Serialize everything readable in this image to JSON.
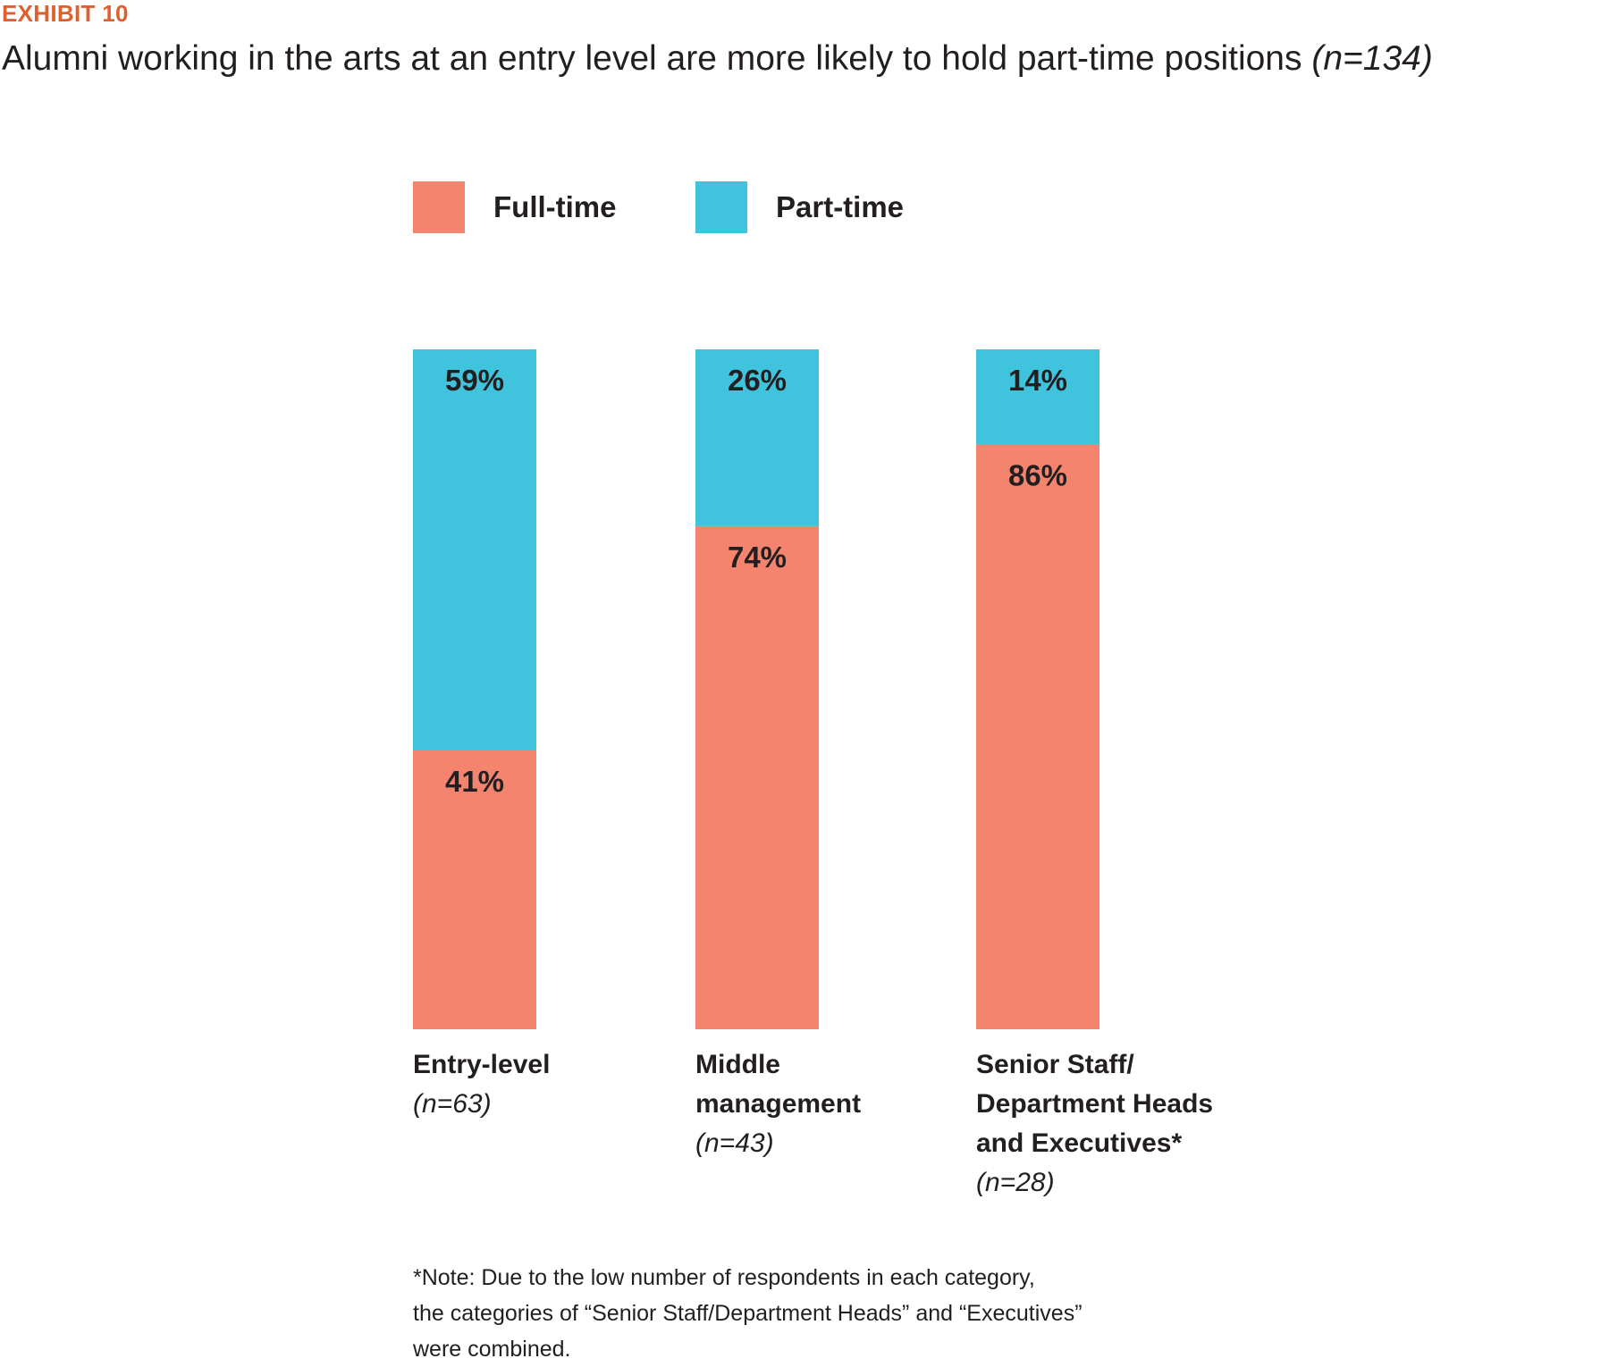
{
  "header": {
    "exhibit": "EXHIBIT 10",
    "title": "Alumni working in the arts at an entry level are more likely to hold part-time positions",
    "title_n": "(n=134)"
  },
  "legend": [
    {
      "label": "Full-time",
      "color": "#f4846d"
    },
    {
      "label": "Part-time",
      "color": "#40c3dc"
    }
  ],
  "categories": [
    {
      "lines": [
        "Entry-level"
      ],
      "n": "(n=63)"
    },
    {
      "lines": [
        "Middle",
        "management"
      ],
      "n": "(n=43)"
    },
    {
      "lines": [
        "Senior Staff/",
        "Department Heads",
        "and Executives*"
      ],
      "n": "(n=28)"
    }
  ],
  "note": {
    "lines": [
      "*Note: Due to the low number of respondents in each category,",
      "the categories of “Senior Staff/Department Heads” and “Executives”",
      "were combined."
    ]
  },
  "chart_data": {
    "type": "bar",
    "stacked": true,
    "categories": [
      "Entry-level",
      "Middle management",
      "Senior Staff/Department Heads and Executives*"
    ],
    "series": [
      {
        "name": "Full-time",
        "values": [
          41,
          74,
          86
        ],
        "labels": [
          "41%",
          "74%",
          "86%"
        ],
        "color": "#f4846d"
      },
      {
        "name": "Part-time",
        "values": [
          59,
          26,
          14
        ],
        "labels": [
          "59%",
          "26%",
          "14%"
        ],
        "color": "#40c3dc"
      }
    ],
    "ylim": [
      0,
      100
    ],
    "unit": "%",
    "grid": false,
    "legend_position": "top"
  }
}
